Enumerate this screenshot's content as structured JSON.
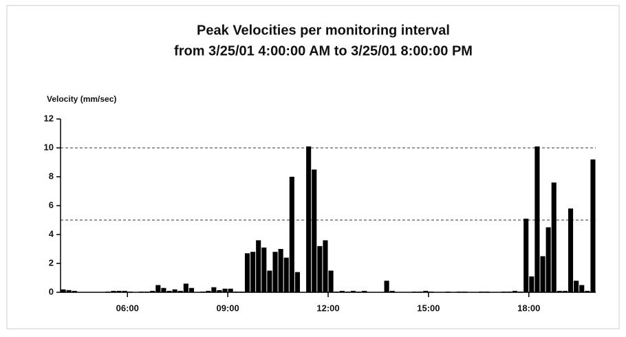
{
  "chart_data": {
    "type": "histogram",
    "title": "Peak Velocities per monitoring interval",
    "subtitle": "from 3/25/01 4:00:00 AM to 3/25/01 8:00:00 PM",
    "y_label": "Velocity (mm/sec)",
    "color": "#000000",
    "bins": [
      240,
      250,
      260,
      270,
      280,
      290,
      300,
      310,
      320,
      330,
      340,
      350,
      360,
      370,
      380,
      390,
      400,
      410,
      420,
      430,
      440,
      450,
      460,
      470,
      480,
      490,
      500,
      510,
      520,
      530,
      540,
      550,
      560,
      570,
      580,
      590,
      600,
      610,
      620,
      630,
      640,
      650,
      660,
      670,
      680,
      690,
      700,
      710,
      720,
      730,
      740,
      750,
      760,
      770,
      780,
      790,
      800,
      810,
      820,
      830,
      840,
      850,
      860,
      870,
      880,
      890,
      900,
      910,
      920,
      930,
      940,
      950,
      960,
      970,
      980,
      990,
      1000,
      1010,
      1020,
      1030,
      1040,
      1050,
      1060,
      1070,
      1080,
      1090,
      1100,
      1110,
      1120,
      1130,
      1140,
      1150,
      1160,
      1170,
      1180,
      1190,
      1200
    ],
    "values": [
      0.2,
      0.15,
      0.1,
      0,
      0,
      0,
      0,
      0,
      0.05,
      0.1,
      0.1,
      0.1,
      0.05,
      0,
      0.05,
      0.05,
      0.1,
      0.5,
      0.3,
      0.1,
      0.2,
      0.1,
      0.6,
      0.3,
      0,
      0.05,
      0.1,
      0.35,
      0.15,
      0.25,
      0.25,
      0.05,
      0.05,
      2.7,
      2.8,
      3.6,
      3.1,
      1.5,
      2.8,
      3.0,
      2.4,
      8.0,
      1.4,
      0,
      10.1,
      8.5,
      3.2,
      3.6,
      1.5,
      0.05,
      0.1,
      0.05,
      0.1,
      0.05,
      0.1,
      0,
      0,
      0,
      0.8,
      0.1,
      0,
      0,
      0,
      0.05,
      0.05,
      0.1,
      0.05,
      0,
      0,
      0.05,
      0,
      0.05,
      0.05,
      0,
      0,
      0.05,
      0.05,
      0,
      0,
      0.05,
      0.05,
      0.1,
      0.05,
      5.1,
      1.1,
      10.1,
      2.5,
      4.5,
      7.6,
      0.1,
      0.1,
      5.8,
      0.8,
      0.5,
      0.1,
      9.2
    ],
    "xlim": [
      240,
      1200
    ],
    "xticks": [
      {
        "value": 360,
        "label": "06:00"
      },
      {
        "value": 540,
        "label": "09:00"
      },
      {
        "value": 720,
        "label": "12:00"
      },
      {
        "value": 900,
        "label": "15:00"
      },
      {
        "value": 1080,
        "label": "18:00"
      }
    ],
    "ylim": [
      0,
      12
    ],
    "yticks": [
      0,
      2,
      4,
      6,
      8,
      10,
      12
    ],
    "reference_lines": [
      5,
      10
    ]
  }
}
